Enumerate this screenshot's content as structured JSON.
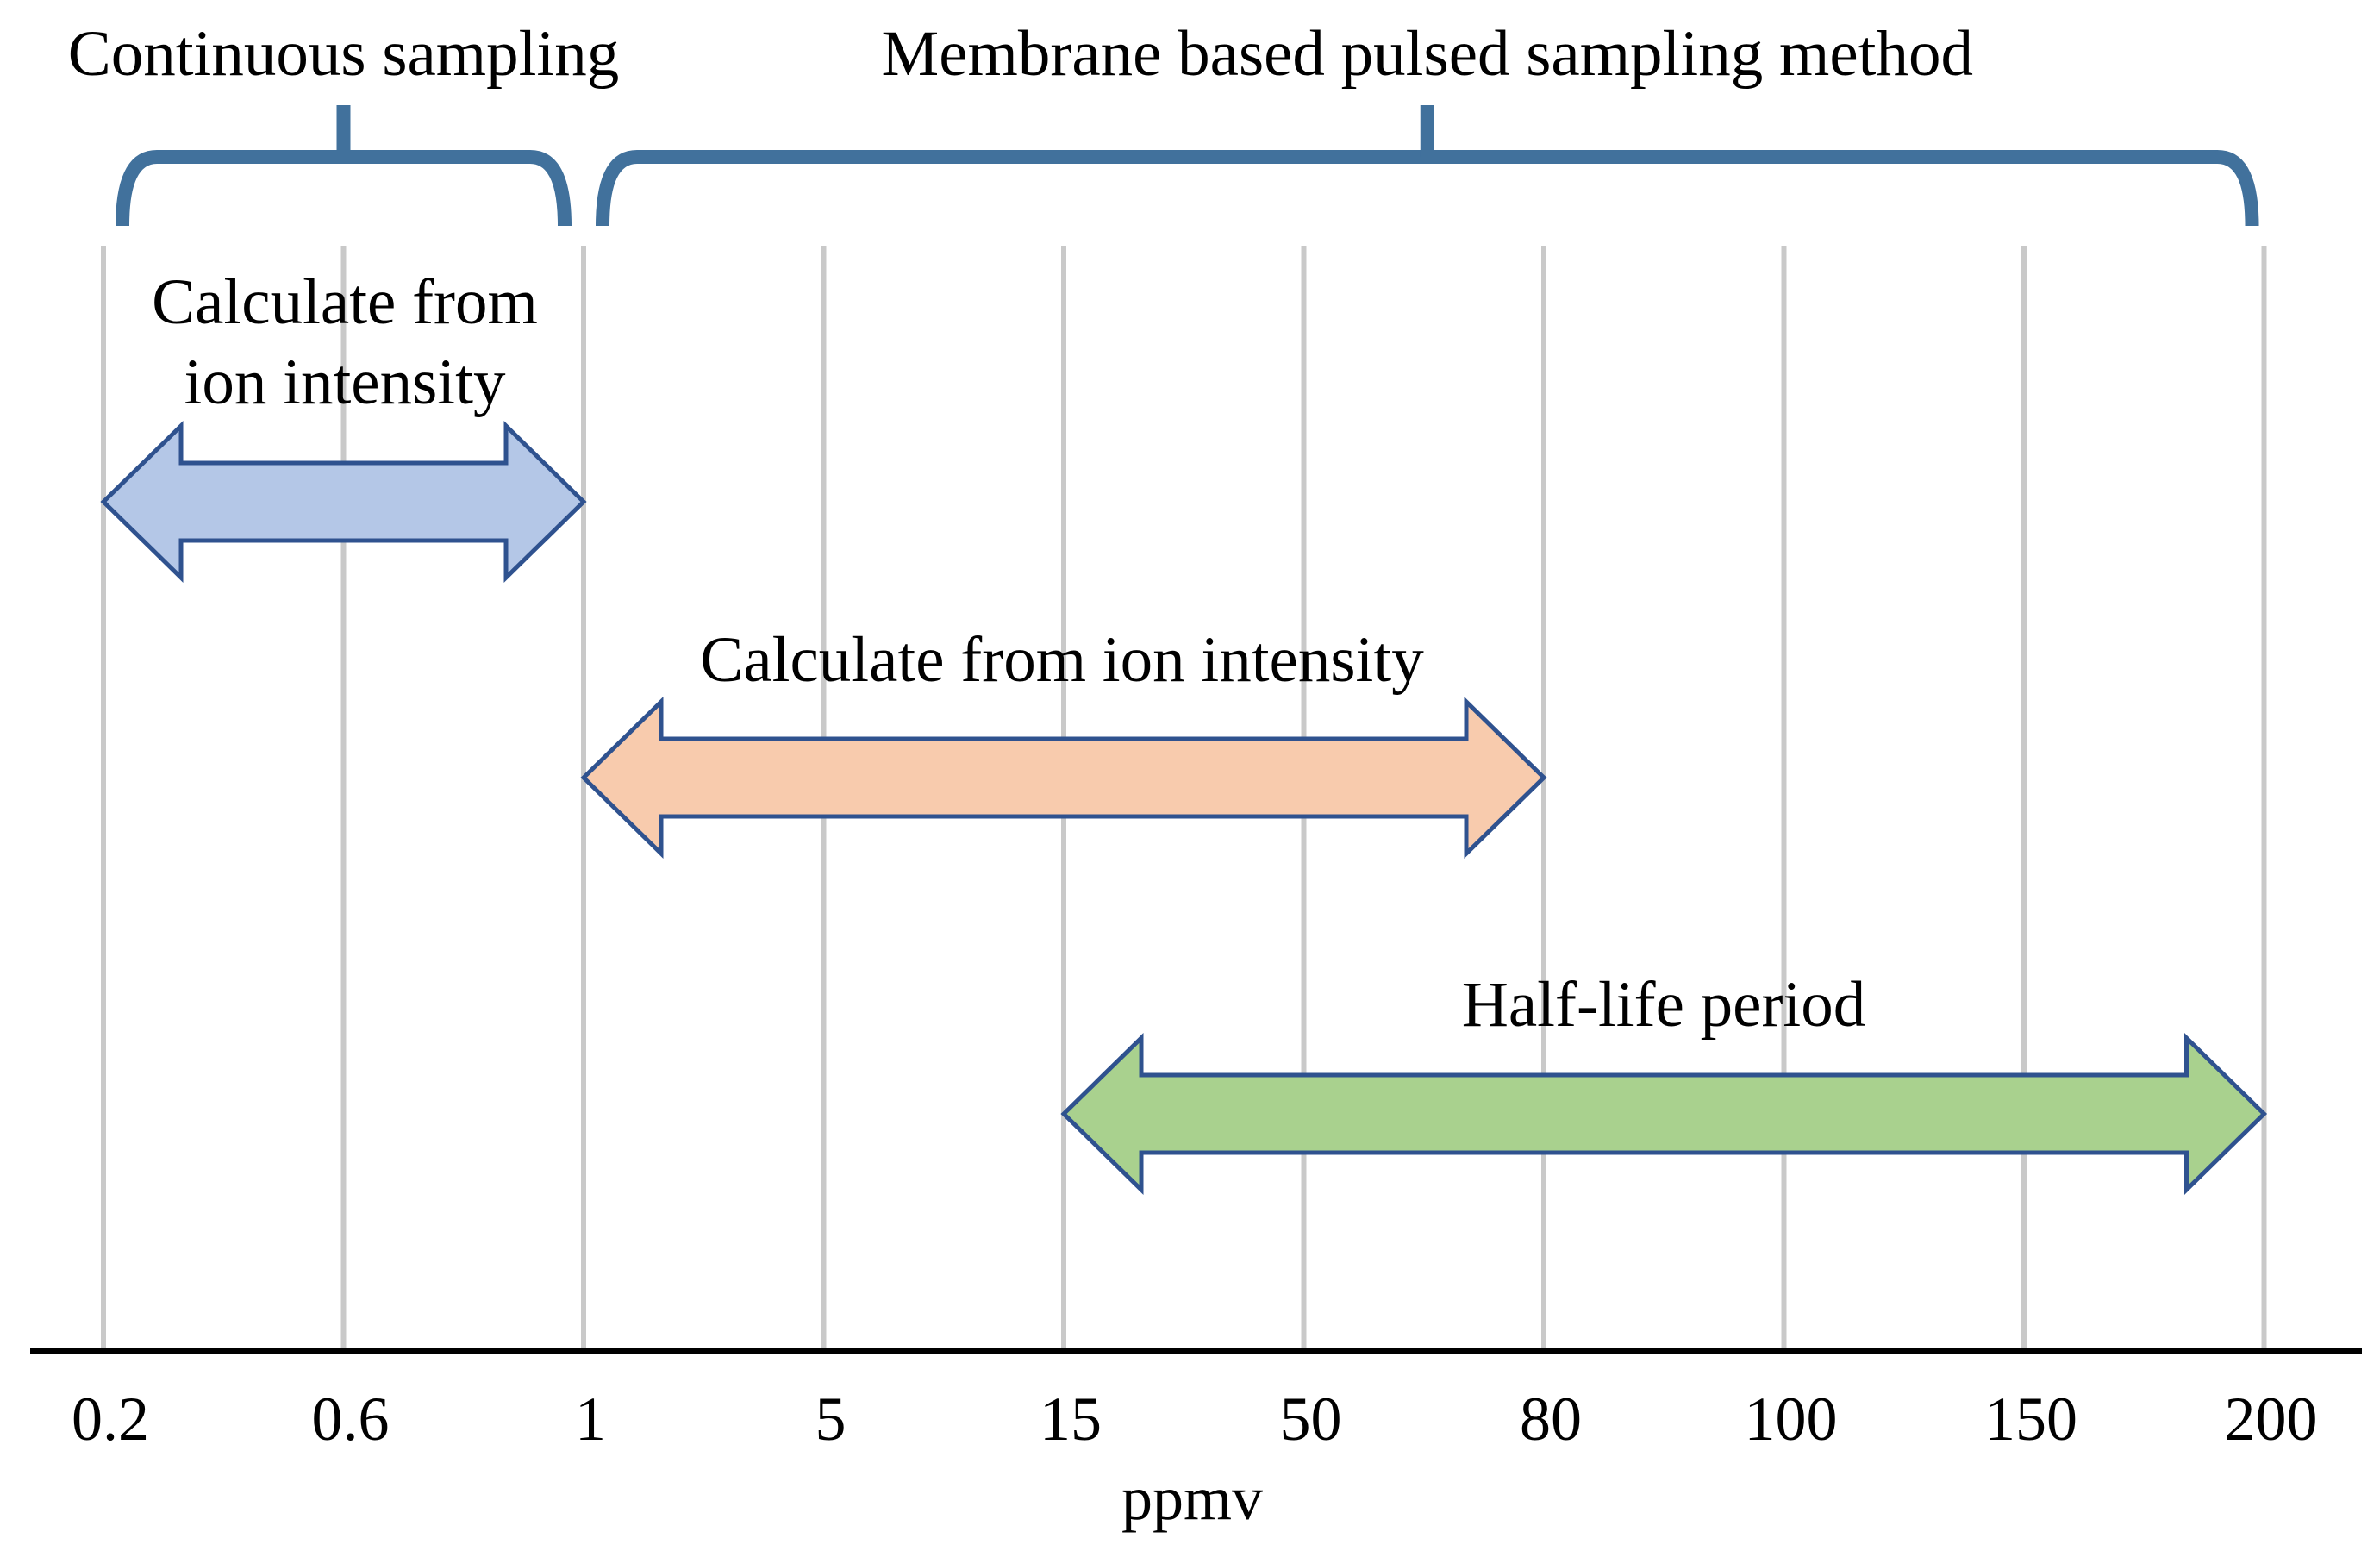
{
  "brackets": [
    {
      "label": "Continuous sampling",
      "from_tick": 0,
      "to_tick": 2
    },
    {
      "label": "Membrane based pulsed sampling method",
      "from_tick": 2,
      "to_tick": 9
    }
  ],
  "axis": {
    "ticks": [
      "0.2",
      "0.6",
      "1",
      "5",
      "15",
      "50",
      "80",
      "100",
      "150",
      "200"
    ],
    "label": "ppmv"
  },
  "arrows": [
    {
      "label_lines": [
        "Calculate from",
        "ion intensity"
      ],
      "from_tick": 0,
      "to_tick": 2,
      "fill": "#b4c7e7",
      "stroke": "#2f528f"
    },
    {
      "label_lines": [
        "Calculate from ion intensity"
      ],
      "from_tick": 2,
      "to_tick": 6,
      "fill": "#f8cbad",
      "stroke": "#2f528f"
    },
    {
      "label_lines": [
        "Half-life period"
      ],
      "from_tick": 4,
      "to_tick": 9,
      "fill": "#a9d18e",
      "stroke": "#2f528f"
    }
  ],
  "colors": {
    "bracket": "#41719c",
    "gridline": "#c9c9c9",
    "axis": "#000000"
  }
}
